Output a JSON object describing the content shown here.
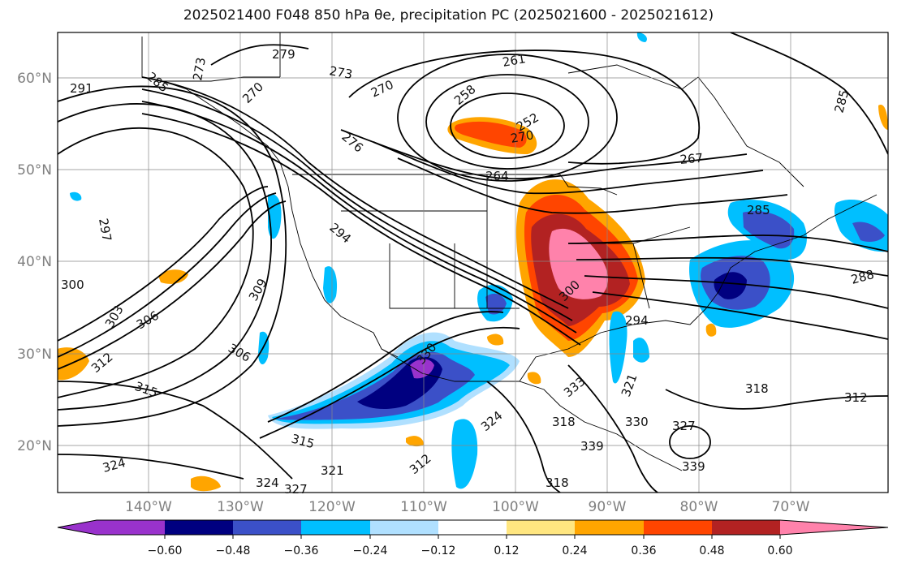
{
  "title": "2025021400 F048 850 hPa θe, precipitation PC (2025021600 - 2025021612)",
  "lat_labels": [
    "60°N",
    "50°N",
    "40°N",
    "30°N",
    "20°N"
  ],
  "lon_labels": [
    "140°W",
    "130°W",
    "120°W",
    "110°W",
    "100°W",
    "90°W",
    "80°W",
    "70°W"
  ],
  "contour_labels": [
    "279",
    "273",
    "273",
    "270",
    "261",
    "258",
    "252",
    "270",
    "291",
    "285",
    "270",
    "276",
    "264",
    "267",
    "285",
    "297",
    "294",
    "300",
    "303",
    "306",
    "309",
    "312",
    "306",
    "315",
    "315",
    "324",
    "321",
    "324",
    "327",
    "312",
    "324",
    "330",
    "333",
    "318",
    "321",
    "330",
    "327",
    "339",
    "339",
    "318",
    "318",
    "312",
    "285",
    "288",
    "300",
    "294"
  ],
  "colorbar": {
    "ticks": [
      "−0.60",
      "−0.48",
      "−0.36",
      "−0.24",
      "−0.12",
      "0.12",
      "0.24",
      "0.36",
      "0.48",
      "0.60"
    ],
    "colors": [
      "#9932cc",
      "#000080",
      "#3b50c8",
      "#00bfff",
      "#b0e0ff",
      "#ffffff",
      "#ffe680",
      "#ffa500",
      "#ff4500",
      "#b22222",
      "#ff82ab"
    ]
  }
}
